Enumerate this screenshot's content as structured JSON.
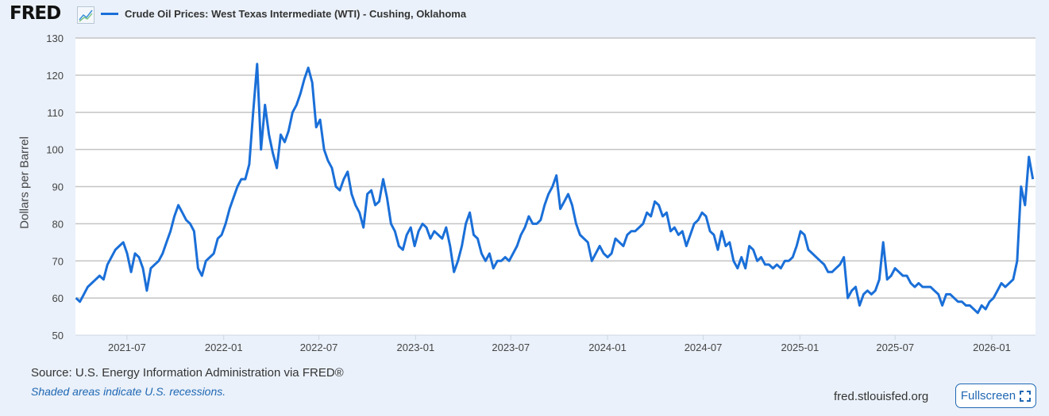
{
  "header": {
    "logo": "FRED",
    "series_title": "Crude Oil Prices: West Texas Intermediate (WTI) - Cushing, Oklahoma"
  },
  "footer": {
    "source": "Source: U.S. Energy Information Administration via FRED®",
    "recessions": "Shaded areas indicate U.S. recessions.",
    "site": "fred.stlouisfed.org",
    "fullscreen": "Fullscreen"
  },
  "colors": {
    "line": "#1a6fd8",
    "background": "#eaf1fa"
  },
  "chart_data": {
    "type": "line",
    "title": "Crude Oil Prices: West Texas Intermediate (WTI) - Cushing, Oklahoma",
    "ylabel": "Dollars per Barrel",
    "xlabel": "",
    "ylim": [
      50,
      130
    ],
    "yticks": [
      50,
      60,
      70,
      80,
      90,
      100,
      110,
      120,
      130
    ],
    "xlim": [
      "2021-03-25",
      "2026-03-25"
    ],
    "xticks": [
      "2021-07",
      "2022-01",
      "2022-07",
      "2023-01",
      "2023-07",
      "2024-01",
      "2024-07",
      "2025-01",
      "2025-07",
      "2026-01"
    ],
    "grid": true,
    "legend": "top-left",
    "x_start": "2021-03-26",
    "x_end": "2026-03-20",
    "spacing": "even",
    "series": [
      {
        "name": "Crude Oil Prices: West Texas Intermediate (WTI) - Cushing, Oklahoma",
        "values": [
          60,
          59,
          61,
          63,
          64,
          65,
          66,
          65,
          69,
          71,
          73,
          74,
          75,
          72,
          67,
          72,
          71,
          68,
          62,
          68,
          69,
          70,
          72,
          75,
          78,
          82,
          85,
          83,
          81,
          80,
          78,
          68,
          66,
          70,
          71,
          72,
          76,
          77,
          80,
          84,
          87,
          90,
          92,
          92,
          96,
          110,
          123,
          100,
          112,
          104,
          99,
          95,
          104,
          102,
          105,
          110,
          112,
          115,
          119,
          122,
          118,
          106,
          108,
          100,
          97,
          95,
          90,
          89,
          92,
          94,
          88,
          85,
          83,
          79,
          88,
          89,
          85,
          86,
          92,
          87,
          80,
          78,
          74,
          73,
          77,
          79,
          74,
          78,
          80,
          79,
          76,
          78,
          77,
          76,
          79,
          74,
          67,
          70,
          74,
          80,
          83,
          77,
          76,
          72,
          70,
          72,
          68,
          70,
          70,
          71,
          70,
          72,
          74,
          77,
          79,
          82,
          80,
          80,
          81,
          85,
          88,
          90,
          93,
          84,
          86,
          88,
          85,
          80,
          77,
          76,
          75,
          70,
          72,
          74,
          72,
          71,
          72,
          76,
          75,
          74,
          77,
          78,
          78,
          79,
          80,
          83,
          82,
          86,
          85,
          82,
          83,
          78,
          79,
          77,
          78,
          74,
          77,
          80,
          81,
          83,
          82,
          78,
          77,
          73,
          78,
          74,
          75,
          70,
          68,
          71,
          68,
          74,
          73,
          70,
          71,
          69,
          69,
          68,
          69,
          68,
          70,
          70,
          71,
          74,
          78,
          77,
          73,
          72,
          71,
          70,
          69,
          67,
          67,
          68,
          69,
          71,
          60,
          62,
          63,
          58,
          61,
          62,
          61,
          62,
          65,
          75,
          65,
          66,
          68,
          67,
          66,
          66,
          64,
          63,
          64,
          63,
          63,
          63,
          62,
          61,
          58,
          61,
          61,
          60,
          59,
          59,
          58,
          58,
          57,
          56,
          58,
          57,
          59,
          60,
          62,
          64,
          63,
          64,
          65,
          70,
          90,
          85,
          98,
          92
        ]
      }
    ]
  }
}
